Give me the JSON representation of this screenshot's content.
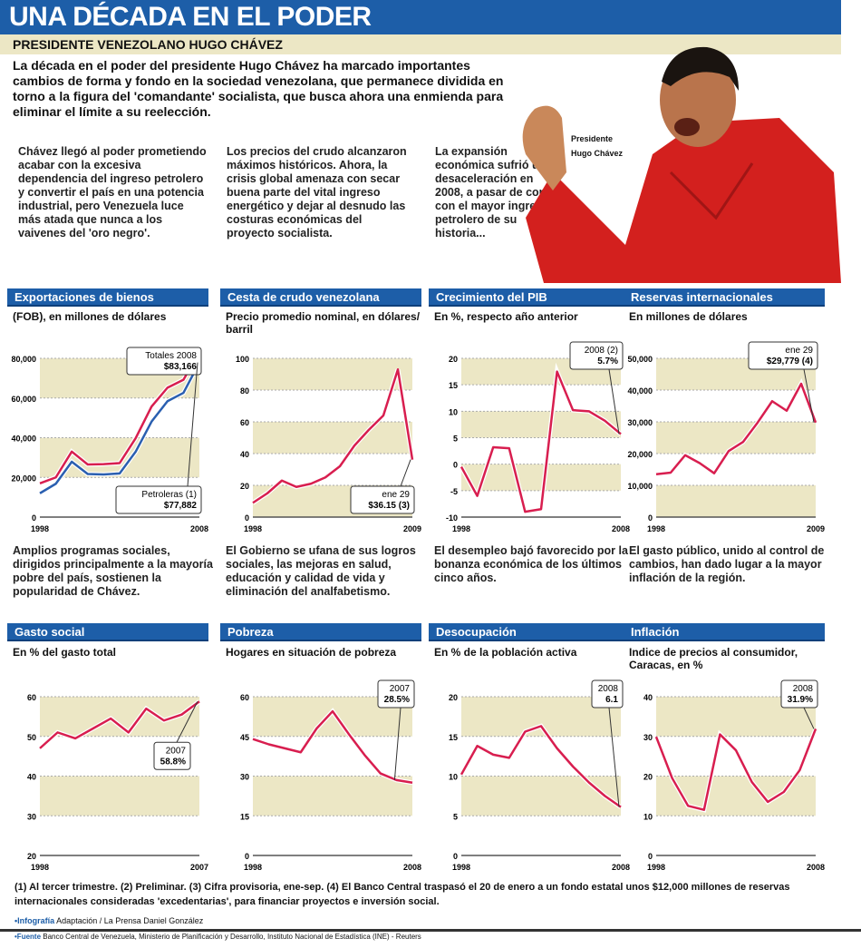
{
  "title": "UNA DÉCADA EN EL PODER",
  "subtitle": "PRESIDENTE VENEZOLANO HUGO CHÁVEZ",
  "intro": "La década en el poder del presidente Hugo Chávez ha marcado importantes cambios de forma y fondo en la sociedad venezolana, que permanece dividida en torno a la figura del 'comandante' socialista, que busca ahora una enmienda para eliminar el límite a su reelección.",
  "columns": [
    "Chávez llegó al poder prometiendo acabar con la excesiva dependencia del ingreso petrolero y convertir el país en una potencia industrial, pero Venezuela luce más atada que nunca a los vaivenes del 'oro negro'.",
    "Los precios del crudo alcanzaron máximos históricos. Ahora, la crisis global amenaza con secar buena parte del vital ingreso energético y dejar al desnudo las costuras económicas del proyecto socialista.",
    "La expansión económica sufrió una desaceleración en 2008, a pasar de contar con el mayor ingreso petrolero de su historia..."
  ],
  "photo_caption": [
    "Presidente",
    "Hugo Chávez"
  ],
  "colors": {
    "header": "#1d5ea8",
    "line": "#d81e4f",
    "line2": "#2a5fb0",
    "band": "#ece7c5"
  },
  "chart_data": [
    {
      "type": "line",
      "title": "Exportaciones de bienos",
      "subtitle": "(FOB), en millones de dólares",
      "x": [
        1998,
        1999,
        2000,
        2001,
        2002,
        2003,
        2004,
        2005,
        2006,
        2007,
        2008
      ],
      "xticks": [
        "1998",
        "2008"
      ],
      "ylim": [
        0,
        80000
      ],
      "yticks": [
        "0",
        "20,000",
        "40,000",
        "60,000",
        "80,000"
      ],
      "series": [
        {
          "name": "Totales",
          "values": [
            17000,
            20000,
            33000,
            26500,
            26700,
            27200,
            39700,
            55700,
            65200,
            69200,
            83166
          ]
        },
        {
          "name": "Petroleras",
          "values": [
            12000,
            16800,
            27900,
            21700,
            21500,
            22000,
            32900,
            48100,
            58400,
            62600,
            77882
          ]
        }
      ],
      "callouts": [
        {
          "lines": [
            "Totales 2008",
            "$83,166"
          ],
          "point": [
            0,
            10
          ]
        },
        {
          "lines": [
            "Petroleras (1)",
            "$77,882"
          ],
          "point": [
            1,
            10
          ]
        }
      ],
      "description": "Amplios programas sociales, dirigidos principalmente a la mayoría pobre del país, sostienen la popularidad de Chávez."
    },
    {
      "type": "line",
      "title": "Cesta de crudo venezolana",
      "subtitle": "Precio promedio nominal, en dólares/ barril",
      "x": [
        1998,
        1999,
        2000,
        2001,
        2002,
        2003,
        2004,
        2005,
        2006,
        2007,
        2008,
        2009
      ],
      "xticks": [
        "1998",
        "2009"
      ],
      "ylim": [
        0,
        100
      ],
      "yticks": [
        "0",
        "20",
        "40",
        "60",
        "80",
        "100"
      ],
      "series": [
        {
          "values": [
            9,
            15,
            23,
            19,
            21,
            25,
            32,
            45,
            55,
            64,
            93,
            36.15
          ]
        }
      ],
      "callouts": [
        {
          "lines": [
            "ene 29",
            "$36.15 (3)"
          ],
          "point": [
            0,
            11
          ]
        }
      ],
      "description": "El Gobierno se ufana de sus logros sociales, las mejoras en salud, educación y calidad de vida y eliminación del analfabetismo."
    },
    {
      "type": "line",
      "title": "Crecimiento del PIB",
      "subtitle": "En %, respecto año anterior",
      "x": [
        1998,
        1999,
        2000,
        2001,
        2002,
        2003,
        2004,
        2005,
        2006,
        2007,
        2008
      ],
      "xticks": [
        "1998",
        "2008"
      ],
      "ylim": [
        -10,
        20
      ],
      "yticks": [
        "-10",
        "-5",
        "0",
        "5",
        "10",
        "15",
        "20"
      ],
      "series": [
        {
          "values": [
            -0.5,
            -6,
            3.2,
            3,
            -9,
            -8.5,
            17.5,
            10.2,
            10,
            8.2,
            5.7
          ]
        }
      ],
      "callouts": [
        {
          "lines": [
            "2008 (2)",
            "5.7%"
          ],
          "point": [
            0,
            10
          ]
        }
      ],
      "description": "El desempleo bajó favorecido por la bonanza económica de los últimos cinco años."
    },
    {
      "type": "line",
      "title": "Reservas internacionales",
      "subtitle": "En millones de dólares",
      "x": [
        1998,
        1999,
        2000,
        2001,
        2002,
        2003,
        2004,
        2005,
        2006,
        2007,
        2008,
        2009
      ],
      "xticks": [
        "1998",
        "2009"
      ],
      "ylim": [
        0,
        50000
      ],
      "yticks": [
        "0",
        "10,000",
        "20,000",
        "30,000",
        "40,000",
        "50,000"
      ],
      "series": [
        {
          "values": [
            13500,
            14000,
            19500,
            17000,
            13800,
            20800,
            23700,
            29800,
            36500,
            33500,
            42000,
            29779
          ]
        }
      ],
      "callouts": [
        {
          "lines": [
            "ene 29",
            "$29,779 (4)"
          ],
          "point": [
            0,
            11
          ]
        }
      ],
      "description": "El gasto público, unido al control de cambios, han dado lugar a la mayor inflación de la región."
    },
    {
      "type": "line",
      "title": "Gasto social",
      "subtitle": "En % del gasto total",
      "x": [
        1998,
        1999,
        2000,
        2001,
        2002,
        2003,
        2004,
        2005,
        2006,
        2007
      ],
      "xticks": [
        "1998",
        "2007"
      ],
      "ylim": [
        20,
        60
      ],
      "yticks": [
        "20",
        "30",
        "40",
        "50",
        "60"
      ],
      "series": [
        {
          "values": [
            47,
            51,
            49.5,
            52,
            54.5,
            51,
            57,
            54,
            55.5,
            58.8
          ]
        }
      ],
      "callouts": [
        {
          "lines": [
            "2007",
            "58.8%"
          ],
          "point": [
            0,
            9
          ]
        }
      ]
    },
    {
      "type": "line",
      "title": "Pobreza",
      "subtitle": "Hogares en situación de pobreza",
      "x": [
        1998,
        1999,
        2000,
        2001,
        2002,
        2003,
        2004,
        2005,
        2006,
        2007,
        2008
      ],
      "xticks": [
        "1998",
        "2008"
      ],
      "ylim": [
        0,
        60
      ],
      "yticks": [
        "0",
        "15",
        "30",
        "45",
        "60"
      ],
      "series": [
        {
          "values": [
            44,
            42,
            40.5,
            39,
            48,
            54.5,
            46,
            38,
            31,
            28.5,
            27.5
          ]
        }
      ],
      "callouts": [
        {
          "lines": [
            "2007",
            "28.5%"
          ],
          "point": [
            0,
            9
          ]
        }
      ]
    },
    {
      "type": "line",
      "title": "Desocupación",
      "subtitle": "En % de la población activa",
      "x": [
        1998,
        1999,
        2000,
        2001,
        2002,
        2003,
        2004,
        2005,
        2006,
        2007,
        2008
      ],
      "xticks": [
        "1998",
        "2008"
      ],
      "ylim": [
        0,
        20
      ],
      "yticks": [
        "0",
        "5",
        "10",
        "15",
        "20"
      ],
      "series": [
        {
          "values": [
            10.2,
            13.8,
            12.7,
            12.3,
            15.6,
            16.3,
            13.5,
            11.2,
            9.2,
            7.5,
            6.1
          ]
        }
      ],
      "callouts": [
        {
          "lines": [
            "2008",
            "6.1"
          ],
          "point": [
            0,
            10
          ]
        }
      ]
    },
    {
      "type": "line",
      "title": "Inflación",
      "subtitle": "Indice de precios al consumidor, Caracas, en %",
      "x": [
        1998,
        1999,
        2000,
        2001,
        2002,
        2003,
        2004,
        2005,
        2006,
        2007,
        2008
      ],
      "xticks": [
        "1998",
        "2008"
      ],
      "ylim": [
        0,
        40
      ],
      "yticks": [
        "0",
        "10",
        "20",
        "30",
        "40"
      ],
      "series": [
        {
          "values": [
            29.9,
            19.5,
            12.5,
            11.5,
            30.5,
            26.5,
            18.5,
            13.5,
            16,
            21.5,
            31.9
          ]
        }
      ],
      "callouts": [
        {
          "lines": [
            "2008",
            "31.9%"
          ],
          "point": [
            0,
            10
          ]
        }
      ]
    }
  ],
  "footnotes": "(1) Al tercer trimestre.   (2) Preliminar.   (3) Cifra provisoria, ene-sep.   (4) El Banco Central traspasó el 20 de enero a un fondo estatal unos $12,000 millones de reservas internacionales consideradas 'excedentarias', para financiar proyectos e inversión social.",
  "credit": {
    "label": "•Infografía",
    "text": "Adaptación / La Prensa Daniel González"
  },
  "source": {
    "label": "•Fuente",
    "text": "Banco Central de Venezuela, Ministerio de Planificación y Desarrollo, Instituto Nacional de Estadística (INE) - Reuters"
  }
}
